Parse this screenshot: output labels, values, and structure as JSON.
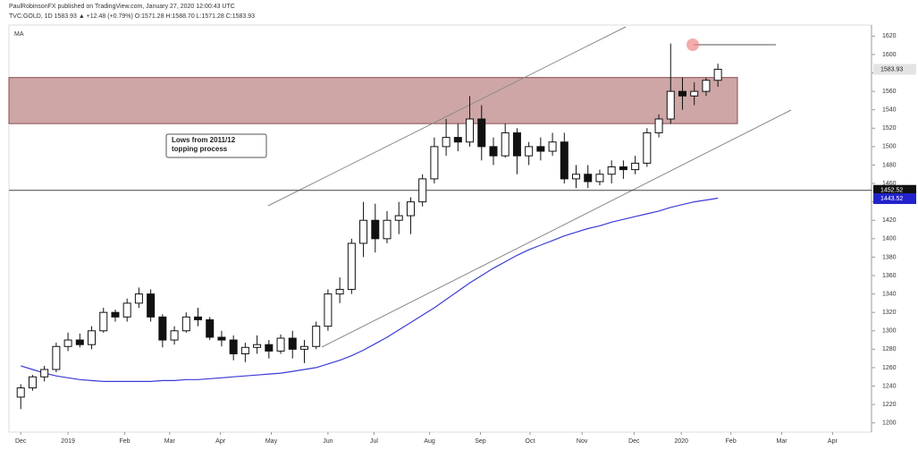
{
  "chart_data": {
    "type": "candlestick",
    "header": [
      "PaulRobinsonFX published on TradingView.com, January 27, 2020 12:00:43 UTC",
      "TVC:GOLD, 1D 1583.93 ▲ +12.48 (+0.79%) O:1571.28 H:1588.70 L:1571.28 C:1583.93"
    ],
    "indicator_label": "MA",
    "annotation": "Lows from 2011/12\ntopping process",
    "x": [
      0,
      1,
      2,
      3,
      4,
      5,
      6,
      7,
      8,
      9,
      10,
      11,
      12,
      13,
      14,
      15,
      16,
      17,
      18,
      19,
      20,
      21,
      22,
      23,
      24,
      25,
      26,
      27,
      28,
      29,
      30,
      31,
      32,
      33,
      34,
      35,
      36,
      37,
      38,
      39,
      40,
      41,
      42,
      43,
      44,
      45,
      46,
      47,
      48,
      49,
      50,
      51,
      52,
      53,
      54,
      55,
      56,
      57,
      58,
      59
    ],
    "open": [
      1228,
      1238,
      1250,
      1258,
      1283,
      1290,
      1285,
      1300,
      1320,
      1315,
      1330,
      1340,
      1315,
      1290,
      1300,
      1315,
      1312,
      1293,
      1290,
      1275,
      1282,
      1285,
      1278,
      1292,
      1280,
      1283,
      1305,
      1340,
      1345,
      1395,
      1420,
      1400,
      1420,
      1425,
      1440,
      1465,
      1500,
      1510,
      1505,
      1530,
      1500,
      1490,
      1515,
      1490,
      1500,
      1495,
      1505,
      1465,
      1470,
      1462,
      1470,
      1478,
      1475,
      1482,
      1515,
      1530,
      1560,
      1555,
      1560,
      1572
    ],
    "high": [
      1242,
      1252,
      1262,
      1287,
      1298,
      1297,
      1305,
      1325,
      1323,
      1335,
      1347,
      1345,
      1318,
      1305,
      1320,
      1325,
      1315,
      1300,
      1295,
      1287,
      1295,
      1290,
      1296,
      1300,
      1290,
      1310,
      1345,
      1358,
      1400,
      1440,
      1438,
      1430,
      1440,
      1445,
      1470,
      1510,
      1530,
      1525,
      1555,
      1545,
      1510,
      1525,
      1520,
      1505,
      1510,
      1515,
      1515,
      1480,
      1480,
      1475,
      1485,
      1485,
      1490,
      1520,
      1535,
      1612,
      1575,
      1570,
      1575,
      1590
    ],
    "low": [
      1215,
      1235,
      1245,
      1255,
      1278,
      1282,
      1280,
      1298,
      1310,
      1310,
      1325,
      1310,
      1282,
      1285,
      1298,
      1305,
      1290,
      1283,
      1268,
      1266,
      1275,
      1270,
      1275,
      1270,
      1265,
      1280,
      1300,
      1330,
      1340,
      1380,
      1385,
      1395,
      1405,
      1405,
      1435,
      1460,
      1490,
      1495,
      1500,
      1485,
      1480,
      1488,
      1470,
      1480,
      1485,
      1490,
      1460,
      1455,
      1455,
      1458,
      1460,
      1465,
      1470,
      1478,
      1510,
      1525,
      1540,
      1545,
      1555,
      1565
    ],
    "close": [
      1238,
      1250,
      1258,
      1283,
      1290,
      1285,
      1300,
      1320,
      1315,
      1330,
      1340,
      1315,
      1290,
      1300,
      1315,
      1312,
      1293,
      1290,
      1275,
      1282,
      1285,
      1278,
      1292,
      1280,
      1283,
      1305,
      1340,
      1345,
      1395,
      1420,
      1400,
      1420,
      1425,
      1440,
      1465,
      1500,
      1510,
      1505,
      1530,
      1500,
      1490,
      1515,
      1490,
      1500,
      1495,
      1505,
      1465,
      1470,
      1462,
      1470,
      1478,
      1475,
      1482,
      1515,
      1530,
      1560,
      1555,
      1560,
      1572,
      1584
    ],
    "ma": {
      "color": "#3b3bd6",
      "values": [
        1262,
        1258,
        1254,
        1251,
        1249,
        1247,
        1246,
        1245,
        1245,
        1245,
        1245,
        1245,
        1246,
        1246,
        1247,
        1247,
        1248,
        1249,
        1250,
        1251,
        1252,
        1253,
        1254,
        1256,
        1258,
        1260,
        1264,
        1268,
        1273,
        1279,
        1286,
        1293,
        1301,
        1309,
        1317,
        1325,
        1334,
        1343,
        1352,
        1360,
        1368,
        1375,
        1382,
        1388,
        1393,
        1398,
        1403,
        1407,
        1411,
        1414,
        1418,
        1421,
        1424,
        1427,
        1430,
        1434,
        1437,
        1440,
        1442,
        1444
      ]
    },
    "zone": [
      1525,
      1575
    ],
    "last_price": 1583.93,
    "support_level": 1452.52,
    "ma_last": 1443.52,
    "xlim": [
      -1,
      72
    ],
    "ylim": [
      1190,
      1632
    ],
    "yticks": [
      1200,
      1220,
      1240,
      1260,
      1280,
      1300,
      1320,
      1340,
      1360,
      1380,
      1400,
      1420,
      1440,
      1460,
      1480,
      1500,
      1520,
      1540,
      1560,
      1580,
      1600,
      1620
    ],
    "xticks": [
      {
        "value": 0,
        "label": "Dec"
      },
      {
        "value": 4,
        "label": "2019"
      },
      {
        "value": 8.8,
        "label": "Feb"
      },
      {
        "value": 12.6,
        "label": "Mar"
      },
      {
        "value": 16.9,
        "label": "Apr"
      },
      {
        "value": 21.2,
        "label": "May"
      },
      {
        "value": 26,
        "label": "Jun"
      },
      {
        "value": 29.9,
        "label": "Jul"
      },
      {
        "value": 34.6,
        "label": "Aug"
      },
      {
        "value": 38.9,
        "label": "Sep"
      },
      {
        "value": 43.1,
        "label": "Oct"
      },
      {
        "value": 47.5,
        "label": "Nov"
      },
      {
        "value": 51.9,
        "label": "Dec"
      },
      {
        "value": 55.9,
        "label": "2020"
      },
      {
        "value": 60.1,
        "label": "Feb"
      },
      {
        "value": 64.4,
        "label": "Mar"
      },
      {
        "value": 68.7,
        "label": "Apr"
      }
    ]
  }
}
